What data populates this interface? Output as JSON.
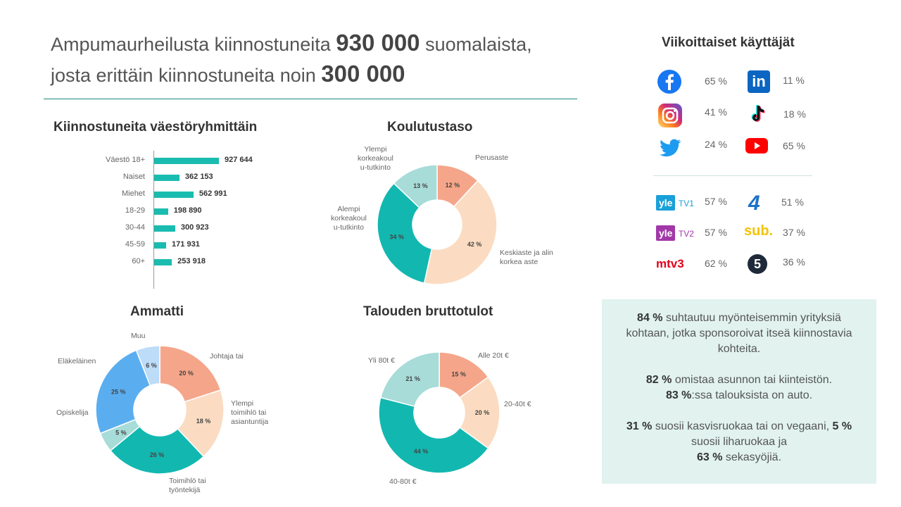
{
  "headline": {
    "line1_pre": "Ampumaurheilusta kiinnostuneita",
    "line1_num": "930 000",
    "line1_post": "suomalaista,",
    "line2_pre": "josta erittäin kiinnostuneita noin",
    "line2_num": "300 000"
  },
  "sections": {
    "population": "Kiinnostuneita väestöryhmittäin",
    "education": "Koulutustaso",
    "occupation": "Ammatti",
    "income": "Talouden bruttotulot",
    "weekly_users": "Viikoittaiset käyttäjät"
  },
  "chart_data": [
    {
      "type": "bar",
      "orientation": "horizontal",
      "title": "Kiinnostuneita väestöryhmittäin",
      "categories": [
        "Väestö 18+",
        "Naiset",
        "Miehet",
        "18-29",
        "30-44",
        "45-59",
        "60+"
      ],
      "values": [
        927644,
        362153,
        562991,
        198890,
        300923,
        171931,
        253918
      ],
      "value_labels": [
        "927 644",
        "362 153",
        "562 991",
        "198 890",
        "300 923",
        "171 931",
        "253 918"
      ],
      "xlim": [
        0,
        1000000
      ],
      "color": "#1bbcb0"
    },
    {
      "type": "pie",
      "title": "Koulutustaso",
      "labels": [
        "Perusaste",
        "Keskiaste ja alin korkea aste",
        "Alempi korkeakoul u-tutkinto",
        "Ylempi korkeakoul u-tutkinto"
      ],
      "values": [
        12,
        42,
        34,
        13
      ],
      "value_labels": [
        "12 %",
        "42 %",
        "34 %",
        "13 %"
      ],
      "colors": [
        "#f5a68a",
        "#fbdcc2",
        "#12b8b0",
        "#a7dcd8"
      ]
    },
    {
      "type": "pie",
      "title": "Ammatti",
      "labels": [
        "Johtaja tai",
        "Ylempi toimihlö tai asiantuntija",
        "Toimihlö tai työntekijä",
        "Opiskelija",
        "Eläkeläinen",
        "Muu"
      ],
      "values": [
        20,
        18,
        26,
        5,
        25,
        6
      ],
      "value_labels": [
        "20 %",
        "18 %",
        "26 %",
        "5 %",
        "25 %",
        "6 %"
      ],
      "colors": [
        "#f5a68a",
        "#fbdcc2",
        "#12b8b0",
        "#a7dcd8",
        "#5aaef0",
        "#bcdcf8"
      ]
    },
    {
      "type": "pie",
      "title": "Talouden bruttotulot",
      "labels": [
        "Alle 20t €",
        "20-40t €",
        "40-80t €",
        "Yli 80t €"
      ],
      "values": [
        15,
        20,
        44,
        21
      ],
      "value_labels": [
        "15 %",
        "20 %",
        "44 %",
        "21 %"
      ],
      "colors": [
        "#f5a68a",
        "#fbdcc2",
        "#12b8b0",
        "#a7dcd8"
      ]
    }
  ],
  "education_labels": {
    "perus": "Perusaste",
    "keski_1": "Keskiaste ja alin",
    "keski_2": "korkea aste",
    "alempi_1": "Alempi",
    "alempi_2": "korkeakoul",
    "alempi_3": "u-tutkinto",
    "ylempi_1": "Ylempi",
    "ylempi_2": "korkeakoul",
    "ylempi_3": "u-tutkinto"
  },
  "occupation_labels": {
    "johtaja": "Johtaja tai",
    "ylempi_1": "Ylempi",
    "ylempi_2": "toimihlö tai",
    "ylempi_3": "asiantuntija",
    "toimihlo_1": "Toimihlö tai",
    "toimihlo_2": "työntekijä",
    "opiskelija": "Opiskelija",
    "elakelainen": "Eläkeläinen",
    "muu": "Muu"
  },
  "income_labels": {
    "alle20": "Alle 20t €",
    "t20_40": "20-40t €",
    "t40_80": "40-80t €",
    "yli80": "Yli 80t €"
  },
  "social": {
    "facebook": {
      "icon": "facebook-icon",
      "pct": "65 %"
    },
    "linkedin": {
      "icon": "linkedin-icon",
      "pct": "11 %",
      "text": "in"
    },
    "instagram": {
      "icon": "instagram-icon",
      "pct": "41 %"
    },
    "tiktok": {
      "icon": "tiktok-icon",
      "pct": "18 %"
    },
    "twitter": {
      "icon": "twitter-icon",
      "pct": "24 %"
    },
    "youtube": {
      "icon": "youtube-icon",
      "pct": "65 %"
    }
  },
  "tv": {
    "yle_tv1": {
      "logo_a": "yle",
      "logo_b": "TV1",
      "pct": "57 %"
    },
    "nelonen": {
      "logo": "4",
      "pct": "51 %"
    },
    "yle_tv2": {
      "logo_a": "yle",
      "logo_b": "TV2",
      "pct": "57 %"
    },
    "sub": {
      "logo": "sub.",
      "pct": "37 %"
    },
    "mtv3": {
      "logo": "mtv3",
      "pct": "62 %"
    },
    "viisi": {
      "logo": "5",
      "pct": "36 %"
    }
  },
  "callout": {
    "p1_bold": "84 %",
    "p1_text": "suhtautuu myönteisemmin yrityksiä kohtaan, jotka sponsoroivat itseä kiinnostavia kohteita.",
    "p2_bold": "82 %",
    "p2_text": "omistaa asunnon tai kiinteistön.",
    "p3_bold": "83 %",
    "p3_text": ":ssa talouksista on auto.",
    "p4_bold1": "31 %",
    "p4_text1": "suosii kasvisruokaa tai on vegaani,",
    "p4_bold2": "5 %",
    "p4_text2": "suosii liharuokaa ja",
    "p4_bold3": "63 %",
    "p4_text3": "sekasyöjiä."
  },
  "colors": {
    "accent": "#1bbcb0",
    "facebook": "#1877f2",
    "linkedin": "#0a66c2",
    "twitter": "#1d9bf0",
    "youtube": "#ff0000",
    "yle_tv1": "#1aa0d8",
    "yle_tv2": "#a238a8",
    "mtv3": "#e3001b",
    "nelonen": "#1d73c8",
    "sub": "#f3c300",
    "callout_bg": "#e1f2ef"
  }
}
